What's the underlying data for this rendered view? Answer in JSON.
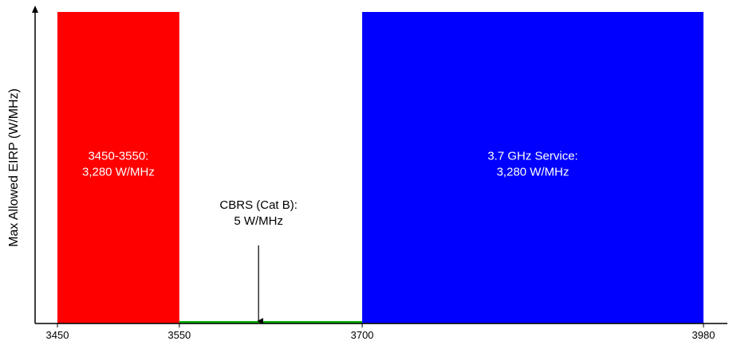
{
  "chart_data": {
    "type": "bar",
    "ylabel": "Max Allowed EIRP (W/MHz)",
    "xlabel": "",
    "title": "",
    "x_ticks": [
      3450,
      3550,
      3700,
      3980
    ],
    "xlim": [
      3450,
      3980
    ],
    "ylim": [
      0,
      3280
    ],
    "grid": false,
    "series": [
      {
        "x_start": 3450,
        "x_end": 3550,
        "value": 3280,
        "color": "#ff0000",
        "label_lines": [
          "3450-3550:",
          "3,280 W/MHz"
        ]
      },
      {
        "x_start": 3550,
        "x_end": 3700,
        "value": 5,
        "color": "#00b000",
        "label_lines": [
          "CBRS (Cat B):",
          "5 W/MHz"
        ]
      },
      {
        "x_start": 3700,
        "x_end": 3980,
        "value": 3280,
        "color": "#0000ff",
        "label_lines": [
          "3.7 GHz Service:",
          "3,280 W/MHz"
        ]
      }
    ],
    "annotation": {
      "points_to_x": 3615,
      "text_series_index": 1
    }
  }
}
